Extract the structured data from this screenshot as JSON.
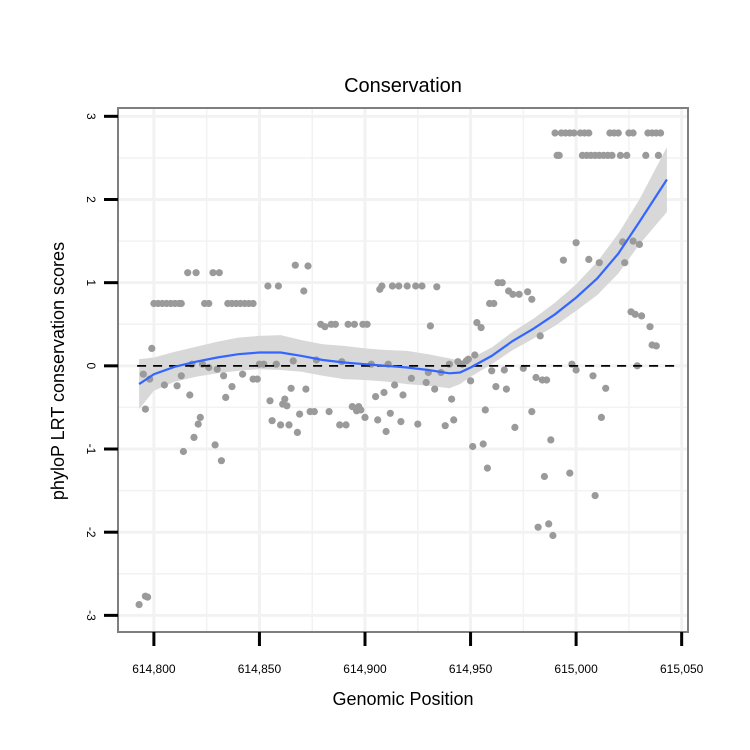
{
  "chart_data": {
    "type": "scatter",
    "title": "Conservation",
    "xlabel": "Genomic Position",
    "ylabel": "phyloP LRT conservation scores",
    "xlim": [
      614783,
      615053
    ],
    "ylim": [
      -3.2,
      3.1
    ],
    "x_ticks": [
      614800,
      614850,
      614900,
      614950,
      615000,
      615050
    ],
    "x_tick_labels": [
      "614,800",
      "614,850",
      "614,900",
      "614,950",
      "615,000",
      "615,050"
    ],
    "y_ticks": [
      -3,
      -2,
      -1,
      0,
      1,
      2,
      3
    ],
    "y_tick_labels": [
      "-3",
      "-2",
      "-1",
      "0",
      "1",
      "2",
      "3"
    ],
    "reference_line": {
      "y": 0,
      "style": "dashed"
    },
    "colors": {
      "points": "#9a9a9a",
      "smooth": "#3366ff",
      "ribbon": "#d6d6d6",
      "panel_border": "#7f7f7f",
      "grid": "#f2f2f2"
    },
    "series": [
      {
        "name": "scores",
        "kind": "points",
        "points": [
          [
            614793,
            -2.87
          ],
          [
            614796,
            -2.77
          ],
          [
            614797,
            -2.78
          ],
          [
            614795,
            -0.1
          ],
          [
            614796,
            -0.52
          ],
          [
            614798,
            -0.16
          ],
          [
            614799,
            0.21
          ],
          [
            614800,
            0.75
          ],
          [
            614802,
            0.75
          ],
          [
            614804,
            0.75
          ],
          [
            614806,
            0.75
          ],
          [
            614808,
            0.75
          ],
          [
            614810,
            0.75
          ],
          [
            614812,
            0.75
          ],
          [
            614813,
            0.75
          ],
          [
            614805,
            -0.23
          ],
          [
            614811,
            -0.24
          ],
          [
            614813,
            -0.12
          ],
          [
            614814,
            -1.03
          ],
          [
            614816,
            1.12
          ],
          [
            614817,
            -0.35
          ],
          [
            614818,
            0.02
          ],
          [
            614819,
            -0.86
          ],
          [
            614820,
            1.12
          ],
          [
            614821,
            -0.7
          ],
          [
            614822,
            -0.62
          ],
          [
            614823,
            0.02
          ],
          [
            614824,
            0.75
          ],
          [
            614826,
            0.75
          ],
          [
            614826,
            -0.02
          ],
          [
            614828,
            1.12
          ],
          [
            614829,
            -0.95
          ],
          [
            614830,
            -0.04
          ],
          [
            614831,
            1.12
          ],
          [
            614832,
            -1.14
          ],
          [
            614833,
            -0.12
          ],
          [
            614834,
            -0.38
          ],
          [
            614835,
            0.75
          ],
          [
            614837,
            0.75
          ],
          [
            614839,
            0.75
          ],
          [
            614841,
            0.75
          ],
          [
            614843,
            0.75
          ],
          [
            614845,
            0.75
          ],
          [
            614847,
            0.75
          ],
          [
            614837,
            -0.25
          ],
          [
            614842,
            -0.1
          ],
          [
            614847,
            -0.16
          ],
          [
            614849,
            -0.16
          ],
          [
            614850,
            0.02
          ],
          [
            614852,
            0.02
          ],
          [
            614854,
            0.96
          ],
          [
            614855,
            -0.42
          ],
          [
            614856,
            -0.66
          ],
          [
            614858,
            0.02
          ],
          [
            614859,
            0.96
          ],
          [
            614860,
            -0.71
          ],
          [
            614861,
            -0.46
          ],
          [
            614862,
            -0.4
          ],
          [
            614863,
            -0.48
          ],
          [
            614864,
            -0.71
          ],
          [
            614865,
            -0.27
          ],
          [
            614866,
            0.06
          ],
          [
            614867,
            1.21
          ],
          [
            614868,
            -0.8
          ],
          [
            614869,
            -0.58
          ],
          [
            614871,
            0.9
          ],
          [
            614872,
            -0.28
          ],
          [
            614873,
            1.2
          ],
          [
            614874,
            -0.55
          ],
          [
            614876,
            -0.55
          ],
          [
            614877,
            0.07
          ],
          [
            614879,
            0.5
          ],
          [
            614881,
            0.47
          ],
          [
            614883,
            -0.55
          ],
          [
            614884,
            0.5
          ],
          [
            614886,
            0.5
          ],
          [
            614888,
            -0.71
          ],
          [
            614889,
            0.05
          ],
          [
            614891,
            -0.71
          ],
          [
            614892,
            0.5
          ],
          [
            614894,
            -0.49
          ],
          [
            614895,
            0.5
          ],
          [
            614896,
            -0.54
          ],
          [
            614897,
            -0.49
          ],
          [
            614898,
            -0.53
          ],
          [
            614899,
            0.5
          ],
          [
            614900,
            -0.62
          ],
          [
            614901,
            0.5
          ],
          [
            614903,
            0.02
          ],
          [
            614905,
            -0.37
          ],
          [
            614906,
            -0.65
          ],
          [
            614907,
            0.92
          ],
          [
            614908,
            0.96
          ],
          [
            614909,
            -0.32
          ],
          [
            614910,
            -0.79
          ],
          [
            614911,
            0.02
          ],
          [
            614912,
            -0.57
          ],
          [
            614913,
            0.96
          ],
          [
            614914,
            -0.23
          ],
          [
            614916,
            0.96
          ],
          [
            614917,
            -0.67
          ],
          [
            614918,
            -0.35
          ],
          [
            614920,
            0.96
          ],
          [
            614922,
            -0.15
          ],
          [
            614924,
            0.96
          ],
          [
            614925,
            -0.7
          ],
          [
            614927,
            0.96
          ],
          [
            614929,
            -0.2
          ],
          [
            614930,
            -0.08
          ],
          [
            614931,
            0.48
          ],
          [
            614933,
            -0.28
          ],
          [
            614934,
            0.95
          ],
          [
            614936,
            -0.08
          ],
          [
            614938,
            -0.72
          ],
          [
            614940,
            0.02
          ],
          [
            614941,
            -0.4
          ],
          [
            614942,
            -0.65
          ],
          [
            614944,
            0.05
          ],
          [
            614946,
            0.02
          ],
          [
            614948,
            0.06
          ],
          [
            614949,
            0.08
          ],
          [
            614950,
            -0.18
          ],
          [
            614951,
            -0.97
          ],
          [
            614952,
            0.13
          ],
          [
            614953,
            0.52
          ],
          [
            614955,
            0.46
          ],
          [
            614956,
            -0.94
          ],
          [
            614957,
            -0.53
          ],
          [
            614958,
            -1.23
          ],
          [
            614959,
            0.75
          ],
          [
            614961,
            0.75
          ],
          [
            614960,
            -0.06
          ],
          [
            614962,
            -0.25
          ],
          [
            614963,
            1.0
          ],
          [
            614965,
            1.0
          ],
          [
            614966,
            -0.05
          ],
          [
            614967,
            -0.28
          ],
          [
            614968,
            0.9
          ],
          [
            614970,
            0.86
          ],
          [
            614971,
            -0.74
          ],
          [
            614973,
            0.86
          ],
          [
            614975,
            -0.03
          ],
          [
            614977,
            0.89
          ],
          [
            614979,
            -0.55
          ],
          [
            614979,
            0.8
          ],
          [
            614981,
            -0.14
          ],
          [
            614982,
            -1.94
          ],
          [
            614983,
            0.36
          ],
          [
            614984,
            -0.17
          ],
          [
            614985,
            -1.33
          ],
          [
            614986,
            -0.17
          ],
          [
            614987,
            -1.9
          ],
          [
            614988,
            -0.89
          ],
          [
            614989,
            -2.04
          ],
          [
            614990,
            2.8
          ],
          [
            614991,
            2.53
          ],
          [
            614992,
            2.53
          ],
          [
            614993,
            2.8
          ],
          [
            614995,
            2.8
          ],
          [
            614997,
            2.8
          ],
          [
            614999,
            2.8
          ],
          [
            614994,
            1.27
          ],
          [
            614997,
            -1.29
          ],
          [
            614998,
            0.02
          ],
          [
            615000,
            1.48
          ],
          [
            615000,
            -0.05
          ],
          [
            615002,
            2.8
          ],
          [
            615004,
            2.8
          ],
          [
            615006,
            2.8
          ],
          [
            615003,
            2.53
          ],
          [
            615005,
            2.53
          ],
          [
            615007,
            2.53
          ],
          [
            615009,
            2.53
          ],
          [
            615011,
            2.53
          ],
          [
            615013,
            2.53
          ],
          [
            615015,
            2.53
          ],
          [
            615017,
            2.53
          ],
          [
            615006,
            1.28
          ],
          [
            615008,
            -0.12
          ],
          [
            615009,
            -1.56
          ],
          [
            615011,
            1.24
          ],
          [
            615012,
            -0.62
          ],
          [
            615014,
            -0.27
          ],
          [
            615016,
            2.8
          ],
          [
            615018,
            2.8
          ],
          [
            615020,
            2.8
          ],
          [
            615021,
            2.53
          ],
          [
            615022,
            1.49
          ],
          [
            615023,
            1.24
          ],
          [
            615024,
            2.53
          ],
          [
            615025,
            2.8
          ],
          [
            615027,
            2.8
          ],
          [
            615026,
            0.65
          ],
          [
            615027,
            1.5
          ],
          [
            615028,
            0.62
          ],
          [
            615029,
            0.0
          ],
          [
            615030,
            1.46
          ],
          [
            615031,
            0.6
          ],
          [
            615033,
            2.53
          ],
          [
            615034,
            2.8
          ],
          [
            615036,
            2.8
          ],
          [
            615038,
            2.8
          ],
          [
            615040,
            2.8
          ],
          [
            615035,
            0.47
          ],
          [
            615036,
            0.25
          ],
          [
            615038,
            0.24
          ],
          [
            615039,
            2.53
          ]
        ]
      },
      {
        "name": "loess-smooth",
        "kind": "line",
        "x": [
          614793,
          614800,
          614810,
          614820,
          614830,
          614840,
          614850,
          614860,
          614870,
          614880,
          614890,
          614900,
          614910,
          614920,
          614930,
          614940,
          614945,
          614950,
          614960,
          614970,
          614980,
          614990,
          615000,
          615010,
          615020,
          615030,
          615043
        ],
        "y": [
          -0.22,
          -0.1,
          -0.01,
          0.05,
          0.1,
          0.14,
          0.16,
          0.16,
          0.12,
          0.07,
          0.04,
          0.02,
          0.0,
          -0.02,
          -0.05,
          -0.09,
          -0.08,
          -0.02,
          0.12,
          0.3,
          0.45,
          0.62,
          0.82,
          1.05,
          1.35,
          1.73,
          2.24
        ],
        "lower": [
          -0.52,
          -0.3,
          -0.19,
          -0.13,
          -0.09,
          -0.06,
          -0.04,
          -0.05,
          -0.07,
          -0.12,
          -0.16,
          -0.17,
          -0.19,
          -0.22,
          -0.24,
          -0.27,
          -0.22,
          -0.13,
          0.02,
          0.19,
          0.33,
          0.48,
          0.66,
          0.85,
          1.11,
          1.46,
          1.85
        ],
        "upper": [
          0.08,
          0.1,
          0.17,
          0.23,
          0.29,
          0.34,
          0.36,
          0.37,
          0.31,
          0.26,
          0.24,
          0.21,
          0.19,
          0.18,
          0.14,
          0.09,
          0.06,
          0.09,
          0.22,
          0.41,
          0.57,
          0.76,
          0.98,
          1.25,
          1.59,
          2.0,
          2.63
        ]
      }
    ]
  }
}
